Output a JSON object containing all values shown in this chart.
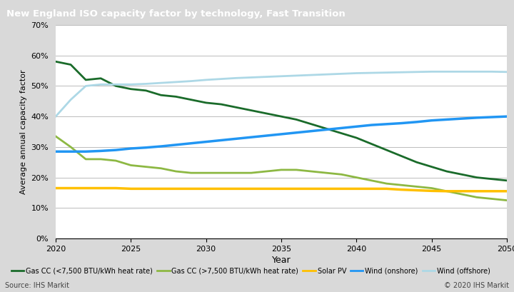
{
  "title": "New England ISO capacity factor by technology, Fast Transition",
  "xlabel": "Year",
  "ylabel": "Average annual capacity factor",
  "title_bg_color": "#7f7f7f",
  "title_text_color": "#ffffff",
  "plot_bg_color": "#ffffff",
  "outer_bg_color": "#d9d9d9",
  "source_text": "Source: IHS Markit",
  "copyright_text": "© 2020 IHS Markit",
  "ylim": [
    0,
    0.7
  ],
  "yticks": [
    0.0,
    0.1,
    0.2,
    0.3,
    0.4,
    0.5,
    0.6,
    0.7
  ],
  "ytick_labels": [
    "0%",
    "10%",
    "20%",
    "30%",
    "40%",
    "50%",
    "60%",
    "70%"
  ],
  "xlim": [
    2020,
    2050
  ],
  "xticks": [
    2020,
    2025,
    2030,
    2035,
    2040,
    2045,
    2050
  ],
  "series": {
    "gas_cc_low": {
      "label": "Gas CC (<7,500 BTU/kWh heat rate)",
      "color": "#1a6b2a",
      "linewidth": 2.0,
      "x": [
        2020,
        2021,
        2022,
        2023,
        2024,
        2025,
        2026,
        2027,
        2028,
        2029,
        2030,
        2031,
        2032,
        2033,
        2034,
        2035,
        2036,
        2037,
        2038,
        2039,
        2040,
        2041,
        2042,
        2043,
        2044,
        2045,
        2046,
        2047,
        2048,
        2049,
        2050
      ],
      "y": [
        0.58,
        0.57,
        0.52,
        0.525,
        0.5,
        0.49,
        0.485,
        0.47,
        0.465,
        0.455,
        0.445,
        0.44,
        0.43,
        0.42,
        0.41,
        0.4,
        0.39,
        0.375,
        0.36,
        0.345,
        0.33,
        0.31,
        0.29,
        0.27,
        0.25,
        0.235,
        0.22,
        0.21,
        0.2,
        0.195,
        0.19
      ]
    },
    "gas_cc_high": {
      "label": "Gas CC (>7,500 BTU/kWh heat rate)",
      "color": "#8db843",
      "linewidth": 2.0,
      "x": [
        2020,
        2021,
        2022,
        2023,
        2024,
        2025,
        2026,
        2027,
        2028,
        2029,
        2030,
        2031,
        2032,
        2033,
        2034,
        2035,
        2036,
        2037,
        2038,
        2039,
        2040,
        2041,
        2042,
        2043,
        2044,
        2045,
        2046,
        2047,
        2048,
        2049,
        2050
      ],
      "y": [
        0.335,
        0.3,
        0.26,
        0.26,
        0.255,
        0.24,
        0.235,
        0.23,
        0.22,
        0.215,
        0.215,
        0.215,
        0.215,
        0.215,
        0.22,
        0.225,
        0.225,
        0.22,
        0.215,
        0.21,
        0.2,
        0.19,
        0.18,
        0.175,
        0.17,
        0.165,
        0.155,
        0.145,
        0.135,
        0.13,
        0.125
      ]
    },
    "solar_pv": {
      "label": "Solar PV",
      "color": "#ffc000",
      "linewidth": 2.5,
      "x": [
        2020,
        2021,
        2022,
        2023,
        2024,
        2025,
        2026,
        2027,
        2028,
        2029,
        2030,
        2031,
        2032,
        2033,
        2034,
        2035,
        2036,
        2037,
        2038,
        2039,
        2040,
        2041,
        2042,
        2043,
        2044,
        2045,
        2046,
        2047,
        2048,
        2049,
        2050
      ],
      "y": [
        0.165,
        0.165,
        0.165,
        0.165,
        0.165,
        0.163,
        0.163,
        0.163,
        0.163,
        0.163,
        0.163,
        0.163,
        0.163,
        0.163,
        0.163,
        0.163,
        0.163,
        0.163,
        0.163,
        0.163,
        0.163,
        0.163,
        0.163,
        0.16,
        0.158,
        0.156,
        0.155,
        0.155,
        0.155,
        0.155,
        0.155
      ]
    },
    "wind_onshore": {
      "label": "Wind (onshore)",
      "color": "#2196f3",
      "linewidth": 2.5,
      "x": [
        2020,
        2021,
        2022,
        2023,
        2024,
        2025,
        2026,
        2027,
        2028,
        2029,
        2030,
        2031,
        2032,
        2033,
        2034,
        2035,
        2036,
        2037,
        2038,
        2039,
        2040,
        2041,
        2042,
        2043,
        2044,
        2045,
        2046,
        2047,
        2048,
        2049,
        2050
      ],
      "y": [
        0.285,
        0.285,
        0.285,
        0.287,
        0.29,
        0.295,
        0.298,
        0.302,
        0.307,
        0.312,
        0.317,
        0.322,
        0.327,
        0.332,
        0.337,
        0.342,
        0.347,
        0.352,
        0.357,
        0.362,
        0.367,
        0.372,
        0.375,
        0.378,
        0.382,
        0.387,
        0.39,
        0.393,
        0.396,
        0.398,
        0.4
      ]
    },
    "wind_offshore": {
      "label": "Wind (offshore)",
      "color": "#add8e6",
      "linewidth": 2.0,
      "x": [
        2020,
        2021,
        2022,
        2023,
        2024,
        2025,
        2026,
        2027,
        2028,
        2029,
        2030,
        2031,
        2032,
        2033,
        2034,
        2035,
        2036,
        2037,
        2038,
        2039,
        2040,
        2041,
        2042,
        2043,
        2044,
        2045,
        2046,
        2047,
        2048,
        2049,
        2050
      ],
      "y": [
        0.4,
        0.455,
        0.5,
        0.505,
        0.505,
        0.505,
        0.507,
        0.51,
        0.513,
        0.516,
        0.52,
        0.523,
        0.526,
        0.528,
        0.53,
        0.532,
        0.534,
        0.536,
        0.538,
        0.54,
        0.542,
        0.543,
        0.544,
        0.545,
        0.546,
        0.547,
        0.547,
        0.547,
        0.547,
        0.547,
        0.546
      ]
    }
  }
}
